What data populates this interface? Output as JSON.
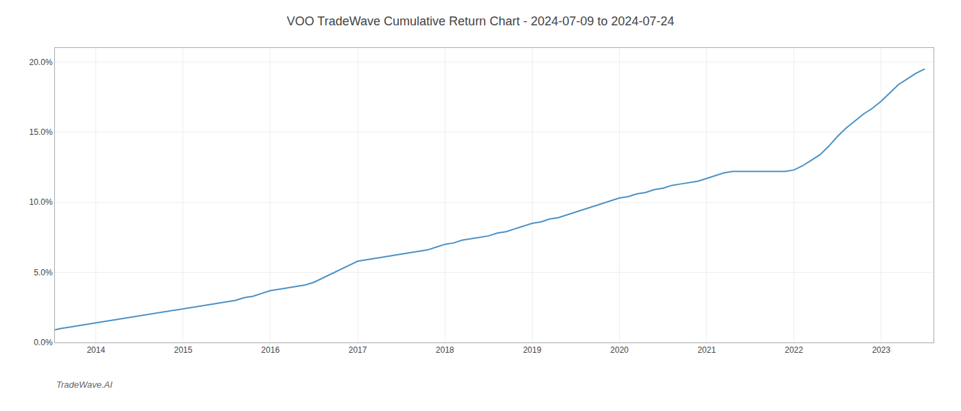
{
  "chart_data": {
    "type": "line",
    "title": "VOO TradeWave Cumulative Return Chart - 2024-07-09 to 2024-07-24",
    "annotations": [
      "TradeWave.AI"
    ],
    "color": "#4a90c4",
    "grid": true,
    "x": [
      2013.53,
      2013.6,
      2013.7,
      2013.8,
      2013.9,
      2014.0,
      2014.1,
      2014.2,
      2014.3,
      2014.4,
      2014.5,
      2014.6,
      2014.7,
      2014.8,
      2014.9,
      2015.0,
      2015.1,
      2015.2,
      2015.3,
      2015.4,
      2015.5,
      2015.6,
      2015.7,
      2015.8,
      2015.9,
      2016.0,
      2016.1,
      2016.2,
      2016.3,
      2016.4,
      2016.5,
      2016.6,
      2016.7,
      2016.8,
      2016.9,
      2017.0,
      2017.1,
      2017.2,
      2017.3,
      2017.4,
      2017.5,
      2017.6,
      2017.7,
      2017.8,
      2017.9,
      2018.0,
      2018.1,
      2018.2,
      2018.3,
      2018.4,
      2018.5,
      2018.6,
      2018.7,
      2018.8,
      2018.9,
      2019.0,
      2019.1,
      2019.2,
      2019.3,
      2019.4,
      2019.5,
      2019.6,
      2019.7,
      2019.8,
      2019.9,
      2020.0,
      2020.1,
      2020.2,
      2020.3,
      2020.4,
      2020.5,
      2020.6,
      2020.7,
      2020.8,
      2020.9,
      2021.0,
      2021.1,
      2021.2,
      2021.3,
      2021.4,
      2021.5,
      2021.6,
      2021.7,
      2021.8,
      2021.9,
      2022.0,
      2022.1,
      2022.2,
      2022.3,
      2022.4,
      2022.5,
      2022.6,
      2022.7,
      2022.8,
      2022.9,
      2023.0,
      2023.1,
      2023.2,
      2023.3,
      2023.4,
      2023.5
    ],
    "values": [
      0.009,
      0.01,
      0.011,
      0.012,
      0.013,
      0.014,
      0.015,
      0.016,
      0.017,
      0.018,
      0.019,
      0.02,
      0.021,
      0.022,
      0.023,
      0.024,
      0.025,
      0.026,
      0.027,
      0.028,
      0.029,
      0.03,
      0.032,
      0.033,
      0.035,
      0.037,
      0.038,
      0.039,
      0.04,
      0.041,
      0.043,
      0.046,
      0.049,
      0.052,
      0.055,
      0.058,
      0.059,
      0.06,
      0.061,
      0.062,
      0.063,
      0.064,
      0.065,
      0.066,
      0.068,
      0.07,
      0.071,
      0.073,
      0.074,
      0.075,
      0.076,
      0.078,
      0.079,
      0.081,
      0.083,
      0.085,
      0.086,
      0.088,
      0.089,
      0.091,
      0.093,
      0.095,
      0.097,
      0.099,
      0.101,
      0.103,
      0.104,
      0.106,
      0.107,
      0.109,
      0.11,
      0.112,
      0.113,
      0.114,
      0.115,
      0.117,
      0.119,
      0.121,
      0.122,
      0.122,
      0.122,
      0.122,
      0.122,
      0.122,
      0.122,
      0.123,
      0.126,
      0.13,
      0.134,
      0.14,
      0.147,
      0.153,
      0.158,
      0.163,
      0.167,
      0.172,
      0.178,
      0.184,
      0.188,
      0.192,
      0.195
    ],
    "xlim": [
      2013.53,
      2023.6
    ],
    "xticks": [
      2014,
      2015,
      2016,
      2017,
      2018,
      2019,
      2020,
      2021,
      2022,
      2023
    ],
    "ylim": [
      0.0,
      0.21
    ],
    "yticks": [
      {
        "value": 0.0,
        "label": "0.0%"
      },
      {
        "value": 0.05,
        "label": "5.0%"
      },
      {
        "value": 0.1,
        "label": "10.0%"
      },
      {
        "value": 0.15,
        "label": "15.0%"
      },
      {
        "value": 0.2,
        "label": "20.0%"
      }
    ]
  }
}
